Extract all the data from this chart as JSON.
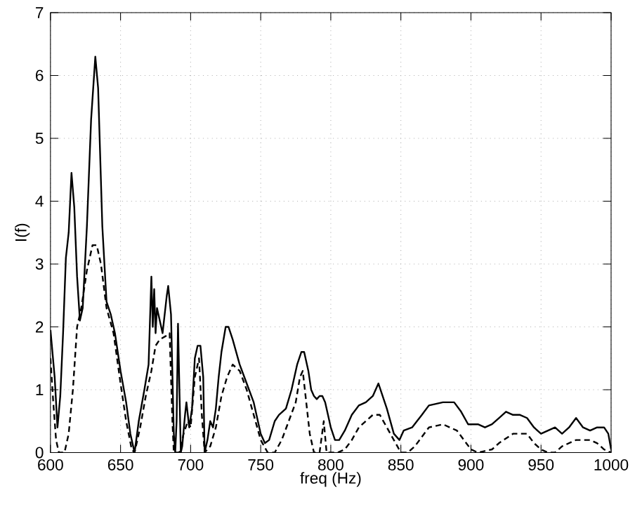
{
  "chart_data": {
    "type": "line",
    "xlabel": "freq (Hz)",
    "ylabel": "I(f)",
    "xlim": [
      600,
      1000
    ],
    "ylim": [
      0,
      7
    ],
    "xticks": [
      600,
      650,
      700,
      750,
      800,
      850,
      900,
      950,
      1000
    ],
    "yticks": [
      0,
      1,
      2,
      3,
      4,
      5,
      6,
      7
    ],
    "grid": true,
    "marker": "none",
    "series": [
      {
        "color": "#000000",
        "line_style": "solid",
        "x": [
          600,
          603,
          605,
          607,
          609,
          611,
          613,
          615,
          617,
          619,
          621,
          623,
          626,
          629,
          632,
          634,
          637,
          640,
          643,
          646,
          650,
          654,
          657,
          660,
          663,
          667,
          670,
          672,
          673,
          674,
          675,
          676,
          680,
          683,
          684,
          686,
          688,
          689,
          690,
          691,
          692,
          693,
          694,
          696,
          697,
          699,
          701,
          703,
          705,
          707,
          709,
          710,
          712,
          714,
          716,
          718,
          720,
          722,
          725,
          727,
          730,
          735,
          740,
          745,
          750,
          753,
          756,
          760,
          763,
          768,
          772,
          776,
          779,
          781,
          784,
          786,
          788,
          790,
          792,
          794,
          796,
          798,
          800,
          803,
          806,
          810,
          815,
          820,
          825,
          830,
          834,
          837,
          840,
          845,
          849,
          852,
          858,
          865,
          870,
          880,
          888,
          893,
          898,
          900,
          905,
          910,
          915,
          920,
          925,
          930,
          935,
          940,
          945,
          950,
          955,
          960,
          965,
          970,
          975,
          980,
          985,
          990,
          995,
          998,
          1000
        ],
        "values": [
          1.95,
          1.2,
          0.4,
          0.9,
          1.9,
          3.1,
          3.5,
          4.45,
          3.9,
          2.8,
          2.1,
          2.3,
          3.6,
          5.3,
          6.3,
          5.8,
          3.6,
          2.4,
          2.2,
          1.9,
          1.3,
          0.8,
          0.3,
          0.0,
          0.5,
          1.0,
          1.4,
          2.8,
          2.0,
          2.6,
          1.9,
          2.3,
          1.9,
          2.5,
          2.65,
          2.2,
          0.3,
          0.0,
          0.5,
          2.05,
          1.0,
          0.0,
          0.1,
          0.6,
          0.8,
          0.4,
          0.7,
          1.5,
          1.7,
          1.7,
          1.2,
          0.0,
          0.2,
          0.5,
          0.4,
          0.7,
          1.2,
          1.6,
          2.0,
          2.0,
          1.8,
          1.4,
          1.1,
          0.8,
          0.3,
          0.15,
          0.2,
          0.5,
          0.6,
          0.7,
          1.0,
          1.4,
          1.6,
          1.6,
          1.3,
          1.0,
          0.9,
          0.85,
          0.9,
          0.9,
          0.8,
          0.6,
          0.4,
          0.2,
          0.2,
          0.35,
          0.6,
          0.75,
          0.8,
          0.9,
          1.1,
          0.9,
          0.7,
          0.3,
          0.2,
          0.35,
          0.4,
          0.6,
          0.75,
          0.8,
          0.8,
          0.65,
          0.45,
          0.45,
          0.45,
          0.4,
          0.45,
          0.55,
          0.65,
          0.6,
          0.6,
          0.55,
          0.4,
          0.3,
          0.35,
          0.4,
          0.3,
          0.4,
          0.55,
          0.4,
          0.35,
          0.4,
          0.4,
          0.3,
          0.05
        ]
      },
      {
        "color": "#000000",
        "line_style": "dashed",
        "x": [
          600,
          602,
          604,
          606,
          610,
          613,
          616,
          619,
          622,
          626,
          630,
          633,
          636,
          640,
          645,
          650,
          654,
          658,
          660,
          664,
          668,
          672,
          675,
          678,
          682,
          685,
          687,
          688,
          692,
          695,
          698,
          700,
          703,
          706,
          708,
          710,
          714,
          718,
          722,
          726,
          730,
          735,
          740,
          745,
          750,
          755,
          760,
          765,
          770,
          775,
          778,
          780,
          782,
          785,
          788,
          792,
          795,
          797,
          805,
          810,
          815,
          820,
          825,
          830,
          835,
          840,
          845,
          850,
          855,
          860,
          865,
          870,
          880,
          890,
          895,
          900,
          905,
          915,
          920,
          930,
          940,
          945,
          950,
          955,
          960,
          965,
          975,
          985,
          990,
          995,
          1000
        ],
        "values": [
          1.5,
          0.8,
          0.2,
          0.0,
          0.0,
          0.3,
          1.0,
          2.0,
          2.3,
          2.9,
          3.3,
          3.3,
          3.0,
          2.3,
          1.9,
          1.1,
          0.5,
          0.05,
          0.0,
          0.4,
          0.9,
          1.3,
          1.7,
          1.8,
          1.85,
          1.9,
          0.5,
          0.0,
          0.0,
          0.3,
          0.5,
          0.4,
          1.2,
          1.5,
          0.6,
          0.0,
          0.1,
          0.4,
          0.9,
          1.2,
          1.4,
          1.3,
          1.0,
          0.6,
          0.2,
          0.0,
          0.0,
          0.2,
          0.5,
          0.8,
          1.2,
          1.3,
          0.9,
          0.3,
          0.0,
          0.0,
          0.5,
          0.0,
          0.0,
          0.05,
          0.2,
          0.4,
          0.5,
          0.6,
          0.6,
          0.4,
          0.2,
          0.0,
          0.0,
          0.1,
          0.25,
          0.4,
          0.45,
          0.35,
          0.2,
          0.05,
          0.0,
          0.05,
          0.15,
          0.3,
          0.3,
          0.15,
          0.05,
          0.0,
          0.0,
          0.1,
          0.2,
          0.2,
          0.15,
          0.05,
          0.0
        ]
      }
    ]
  }
}
